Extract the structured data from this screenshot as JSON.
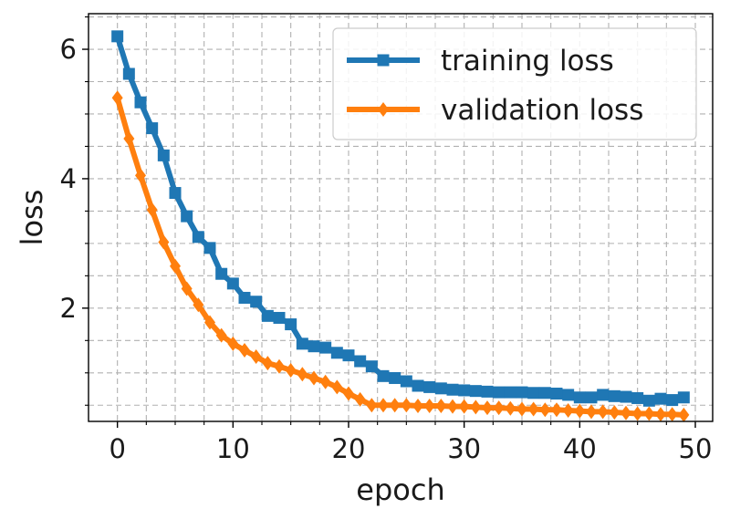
{
  "chart_data": {
    "type": "line",
    "title": "",
    "xlabel": "epoch",
    "ylabel": "loss",
    "xlim": [
      -2.5,
      51.5
    ],
    "ylim": [
      0.25,
      6.55
    ],
    "xticks": [
      0,
      10,
      20,
      30,
      40,
      50
    ],
    "yticks": [
      2,
      4,
      6
    ],
    "grid": true,
    "legend_position": "top-right",
    "x": [
      0,
      1,
      2,
      3,
      4,
      5,
      6,
      7,
      8,
      9,
      10,
      11,
      12,
      13,
      14,
      15,
      16,
      17,
      18,
      19,
      20,
      21,
      22,
      23,
      24,
      25,
      26,
      27,
      28,
      29,
      30,
      31,
      32,
      33,
      34,
      35,
      36,
      37,
      38,
      39,
      40,
      41,
      42,
      43,
      44,
      45,
      46,
      47,
      48,
      49
    ],
    "series": [
      {
        "name": "training loss",
        "color": "#1f77b4",
        "marker": "square",
        "values": [
          6.2,
          5.62,
          5.18,
          4.78,
          4.36,
          3.78,
          3.42,
          3.1,
          2.93,
          2.53,
          2.38,
          2.16,
          2.1,
          1.88,
          1.85,
          1.75,
          1.45,
          1.41,
          1.39,
          1.31,
          1.27,
          1.18,
          1.1,
          0.95,
          0.92,
          0.87,
          0.8,
          0.78,
          0.76,
          0.74,
          0.73,
          0.72,
          0.71,
          0.7,
          0.7,
          0.7,
          0.69,
          0.69,
          0.68,
          0.66,
          0.62,
          0.62,
          0.66,
          0.64,
          0.63,
          0.61,
          0.57,
          0.6,
          0.58,
          0.62
        ]
      },
      {
        "name": "validation loss",
        "color": "#ff7f0e",
        "marker": "diamond",
        "values": [
          5.25,
          4.62,
          4.05,
          3.52,
          3.02,
          2.65,
          2.3,
          2.05,
          1.78,
          1.58,
          1.45,
          1.35,
          1.25,
          1.15,
          1.1,
          1.04,
          0.98,
          0.92,
          0.86,
          0.78,
          0.68,
          0.59,
          0.5,
          0.5,
          0.5,
          0.5,
          0.49,
          0.49,
          0.49,
          0.48,
          0.48,
          0.47,
          0.46,
          0.46,
          0.45,
          0.44,
          0.44,
          0.43,
          0.43,
          0.42,
          0.41,
          0.4,
          0.4,
          0.39,
          0.38,
          0.37,
          0.37,
          0.36,
          0.36,
          0.35
        ]
      }
    ]
  }
}
